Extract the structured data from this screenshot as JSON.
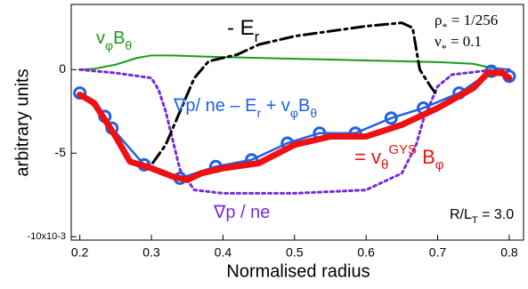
{
  "chart_data": {
    "type": "line",
    "xlabel": "Normalised radius",
    "ylabel": "arbitrary units",
    "xlim": [
      0.188,
      0.82
    ],
    "ylim": [
      -10.2,
      3.9
    ],
    "xticks": [
      0.2,
      0.3,
      0.4,
      0.5,
      0.6,
      0.7,
      0.8
    ],
    "yticks": [
      {
        "value": -10,
        "label": "-10x10-3"
      },
      -5,
      0
    ],
    "series": [
      {
        "color": "#1a9a1a",
        "width": 2,
        "dash": "solid",
        "x": [
          0.2,
          0.22,
          0.25,
          0.28,
          0.3,
          0.33,
          0.36,
          0.4,
          0.45,
          0.5,
          0.55,
          0.6,
          0.65,
          0.7,
          0.75,
          0.77,
          0.8
        ],
        "values": [
          0,
          0.05,
          0.3,
          0.7,
          0.85,
          0.85,
          0.8,
          0.75,
          0.7,
          0.65,
          0.6,
          0.55,
          0.5,
          0.45,
          0.35,
          0.15,
          0
        ]
      },
      {
        "color": "#7a2bd8",
        "width": 3,
        "dash": "dotted",
        "x": [
          0.2,
          0.25,
          0.3,
          0.31,
          0.32,
          0.34,
          0.36,
          0.4,
          0.5,
          0.6,
          0.65,
          0.67,
          0.68,
          0.7,
          0.72,
          0.78,
          0.8
        ],
        "values": [
          0,
          -0.2,
          -0.5,
          -1.2,
          -2.5,
          -6,
          -7.2,
          -7.4,
          -7.4,
          -7.2,
          -6.2,
          -4.5,
          -3,
          -1,
          -0.3,
          0,
          0
        ]
      },
      {
        "color": "#000000",
        "width": 3,
        "dash": "dashdot",
        "x": [
          0.27,
          0.3,
          0.32,
          0.34,
          0.36,
          0.38,
          0.42,
          0.45,
          0.5,
          0.55,
          0.6,
          0.65,
          0.665,
          0.675,
          0.69,
          0.7
        ],
        "values": [
          -5.6,
          -5.7,
          -4.5,
          -2.5,
          -0.5,
          0.5,
          0.9,
          1.5,
          2.0,
          2.3,
          2.6,
          2.8,
          2.5,
          0,
          -1,
          -1.6
        ]
      },
      {
        "color": "#2060e8",
        "width": 2.5,
        "dash": "solid",
        "markers": true,
        "x": [
          0.2,
          0.235,
          0.245,
          0.29,
          0.34,
          0.39,
          0.44,
          0.49,
          0.535,
          0.585,
          0.635,
          0.68,
          0.73,
          0.775,
          0.8
        ],
        "values": [
          -1.4,
          -2.8,
          -3.5,
          -5.7,
          -6.5,
          -5.8,
          -5.4,
          -4.4,
          -3.8,
          -3.8,
          -2.9,
          -2.3,
          -1.4,
          -0.1,
          -0.4
        ]
      },
      {
        "color": "#ee1111",
        "width": 7,
        "dash": "solid",
        "x": [
          0.2,
          0.22,
          0.25,
          0.27,
          0.3,
          0.33,
          0.35,
          0.37,
          0.4,
          0.45,
          0.5,
          0.55,
          0.6,
          0.65,
          0.7,
          0.75,
          0.77,
          0.79,
          0.8
        ],
        "values": [
          -1.5,
          -2,
          -4,
          -5.5,
          -5.9,
          -6.4,
          -6.6,
          -6.2,
          -5.9,
          -5.6,
          -4.5,
          -4.0,
          -4.0,
          -3.3,
          -2.3,
          -1.1,
          -0.2,
          -0.2,
          -0.5
        ]
      }
    ],
    "annotations": [
      {
        "color": "#1a9a1a",
        "size": 20,
        "parts": [
          {
            "t": "v"
          },
          {
            "t": "φ",
            "shift": "sub"
          },
          {
            "t": "B"
          },
          {
            "t": "θ",
            "shift": "sub"
          }
        ]
      },
      {
        "color": "#000000",
        "size": 24,
        "parts": [
          {
            "t": "- E"
          },
          {
            "t": "r",
            "shift": "sub"
          }
        ]
      },
      {
        "color": "#000000",
        "size": 17,
        "serif": true,
        "parts": [
          {
            "t": "ρ"
          },
          {
            "t": "*",
            "shift": "sub"
          },
          {
            "t": " = 1/256"
          }
        ]
      },
      {
        "color": "#000000",
        "size": 17,
        "serif": true,
        "parts": [
          {
            "t": "ν"
          },
          {
            "t": "*",
            "shift": "sub"
          },
          {
            "t": " = 0.1"
          }
        ]
      },
      {
        "color": "#2060e8",
        "size": 20,
        "parts": [
          {
            "t": "∇p/ ne – E"
          },
          {
            "t": "r",
            "shift": "sub"
          },
          {
            "t": " + v"
          },
          {
            "t": "φ",
            "shift": "sub"
          },
          {
            "t": "B"
          },
          {
            "t": "θ",
            "shift": "sub"
          }
        ]
      },
      {
        "color": "#ee1111",
        "size": 22,
        "parts": [
          {
            "t": "= v"
          },
          {
            "t": "θ",
            "shift": "sub"
          },
          {
            "t": "GYS",
            "shift": "super"
          },
          {
            "t": " B"
          },
          {
            "t": "φ",
            "shift": "sub"
          }
        ]
      },
      {
        "color": "#7a2bd8",
        "size": 20,
        "parts": [
          {
            "t": "∇p / ne"
          }
        ]
      },
      {
        "color": "#000000",
        "size": 16,
        "parts": [
          {
            "t": "R/L"
          },
          {
            "t": "T",
            "shift": "sub"
          },
          {
            "t": " = 3.0"
          }
        ]
      }
    ]
  }
}
